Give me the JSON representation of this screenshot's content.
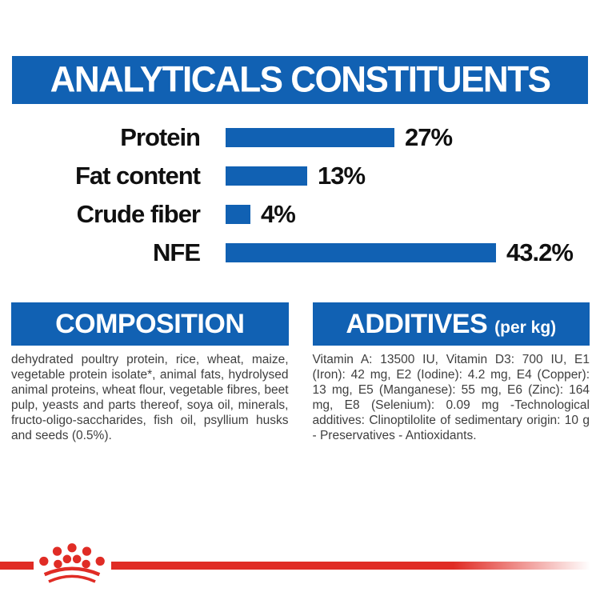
{
  "colors": {
    "brand_blue": "#1161B3",
    "brand_red": "#E02C25",
    "heading_text": "#FFFFFF",
    "chart_text": "#101010",
    "body_text": "#3E3E3E"
  },
  "header": {
    "title": "ANALYTICALS CONSTITUENTS"
  },
  "chart_data": {
    "type": "bar",
    "orientation": "horizontal",
    "title": "ANALYTICALS CONSTITUENTS",
    "categories": [
      "Protein",
      "Fat content",
      "Crude fiber",
      "NFE"
    ],
    "values": [
      27,
      13,
      4,
      43.2
    ],
    "value_labels": [
      "27%",
      "13%",
      "4%",
      "43.2%"
    ],
    "unit": "%",
    "max_value": 43.2,
    "bar_color": "#1161B3",
    "grid": false,
    "legend": false,
    "xlabel": "",
    "ylabel": ""
  },
  "composition": {
    "title": "COMPOSITION",
    "text": "dehydrated poultry protein, rice, wheat, maize, vegetable protein isolate*, animal fats, hydrolysed animal proteins, wheat flour, vegetable fibres, beet pulp, yeasts and parts thereof, soya oil, minerals, fructo-oligo-saccharides, fish oil, psyllium husks and seeds (0.5%)."
  },
  "additives": {
    "title": "ADDITIVES",
    "title_suffix": "(per kg)",
    "text": "Vitamin A: 13500 IU, Vitamin D3: 700 IU, E1 (Iron): 42 mg, E2 (Iodine): 4.2 mg, E4 (Copper): 13 mg, E5 (Manganese): 55 mg, E6 (Zinc): 164 mg, E8 (Selenium): 0.09 mg -Technological additives: Clinoptilolite of sedimentary origin: 10 g - Preservatives - Antioxidants."
  },
  "footer": {
    "logo": "royal-canin-crown"
  }
}
